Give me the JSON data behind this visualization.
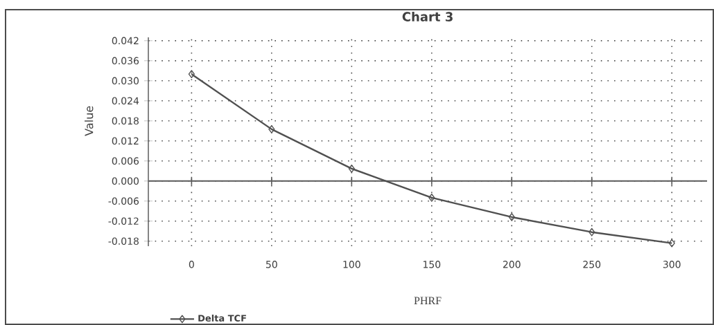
{
  "chart_data": {
    "type": "line",
    "title": "Chart  3",
    "xlabel": "PHRF",
    "ylabel": "Value",
    "x": [
      0,
      50,
      100,
      150,
      200,
      250,
      300
    ],
    "series": [
      {
        "name": "Delta TCF",
        "color": "#505050",
        "values": [
          0.032,
          0.0155,
          0.0037,
          -0.005,
          -0.0108,
          -0.0153,
          -0.0186
        ]
      }
    ],
    "xlim": [
      -27,
      322
    ],
    "xticks": [
      0,
      50,
      100,
      150,
      200,
      250,
      300
    ],
    "ylim": [
      -0.0195,
      0.043
    ],
    "yticks": [
      {
        "value": -0.018,
        "label": "-0.018"
      },
      {
        "value": -0.012,
        "label": "-0.012"
      },
      {
        "value": -0.006,
        "label": "-0.006"
      },
      {
        "value": 0,
        "label": "0.000"
      },
      {
        "value": 0.006,
        "label": "0.006"
      },
      {
        "value": 0.012,
        "label": "0.012"
      },
      {
        "value": 0.018,
        "label": "0.018"
      },
      {
        "value": 0.024,
        "label": "0.024"
      },
      {
        "value": 0.03,
        "label": "0.030"
      },
      {
        "value": 0.036,
        "label": "0.036"
      },
      {
        "value": 0.042,
        "label": "0.042"
      }
    ],
    "grid": true,
    "legend": "bottom left",
    "marker": "diamond",
    "line_style": "solid"
  }
}
